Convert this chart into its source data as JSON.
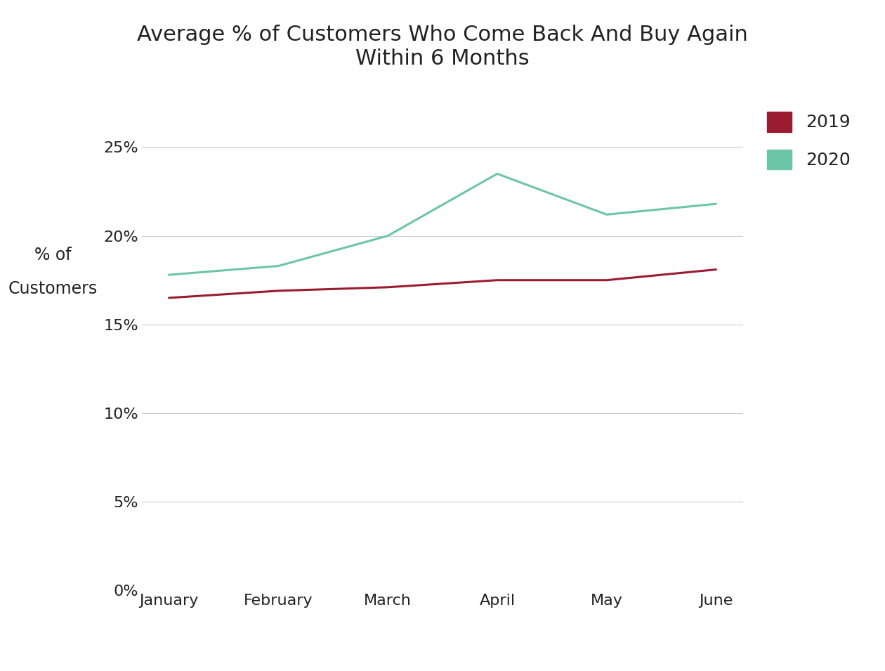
{
  "title": "Average % of Customers Who Come Back And Buy Again\nWithin 6 Months",
  "ylabel_line1": "% of",
  "ylabel_line2": "Customers",
  "months": [
    "January",
    "February",
    "March",
    "April",
    "May",
    "June"
  ],
  "series_2019": [
    0.165,
    0.169,
    0.171,
    0.175,
    0.175,
    0.181
  ],
  "series_2020": [
    0.178,
    0.183,
    0.2,
    0.235,
    0.212,
    0.218
  ],
  "color_2019": "#9B1B30",
  "color_2020": "#6DC5A8",
  "legend_labels": [
    "2019",
    "2020"
  ],
  "ylim": [
    0,
    0.28
  ],
  "yticks": [
    0,
    0.05,
    0.1,
    0.15,
    0.2,
    0.25
  ],
  "title_fontsize": 22,
  "tick_fontsize": 16,
  "ylabel_fontsize": 17,
  "legend_fontsize": 18,
  "line_width": 2.2,
  "background_color": "#FFFFFF",
  "grid_color": "#CCCCCC",
  "text_color": "#222222"
}
